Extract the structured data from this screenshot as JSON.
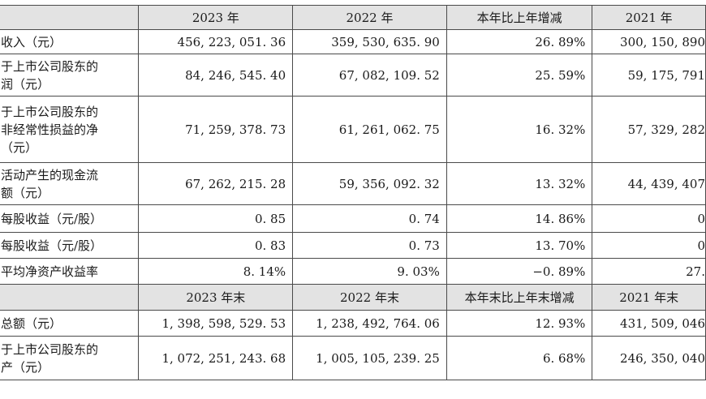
{
  "header1": {
    "col1": "2023 年",
    "col2": "2022 年",
    "col3": "本年比上年增减",
    "col4": "2021 年"
  },
  "rows1": [
    {
      "label": [
        "收入（元）"
      ],
      "v2023": "456, 223, 051. 36",
      "v2022": "359, 530, 635. 90",
      "change": "26. 89%",
      "v2021": "300, 150, 890"
    },
    {
      "label": [
        "于上市公司股东的",
        "润（元）"
      ],
      "v2023": "84, 246, 545. 40",
      "v2022": "67, 082, 109. 52",
      "change": "25. 59%",
      "v2021": "59, 175, 791"
    },
    {
      "label": [
        "于上市公司股东的",
        "非经常性损益的净",
        "（元）"
      ],
      "v2023": "71, 259, 378. 73",
      "v2022": "61, 261, 062. 75",
      "change": "16. 32%",
      "v2021": "57, 329, 282"
    },
    {
      "label": [
        "活动产生的现金流",
        "额（元）"
      ],
      "v2023": "67, 262, 215. 28",
      "v2022": "59, 356, 092. 32",
      "change": "13. 32%",
      "v2021": "44, 439, 407"
    },
    {
      "label": [
        "每股收益（元/股）"
      ],
      "v2023": "0. 85",
      "v2022": "0. 74",
      "change": "14. 86%",
      "v2021": "0"
    },
    {
      "label": [
        "每股收益（元/股）"
      ],
      "v2023": "0. 83",
      "v2022": "0. 73",
      "change": "13. 70%",
      "v2021": "0"
    },
    {
      "label": [
        "平均净资产收益率"
      ],
      "v2023": "8. 14%",
      "v2022": "9. 03%",
      "change": "−0. 89%",
      "v2021": "27."
    }
  ],
  "header2": {
    "col1": "2023 年末",
    "col2": "2022 年末",
    "col3": "本年末比上年末增减",
    "col4": "2021 年末"
  },
  "rows2": [
    {
      "label": [
        "总额（元）"
      ],
      "v2023": "1, 398, 598, 529. 53",
      "v2022": "1, 238, 492, 764. 06",
      "change": "12. 93%",
      "v2021": "431, 509, 046"
    },
    {
      "label": [
        "于上市公司股东的",
        "产（元）"
      ],
      "v2023": "1, 072, 251, 243. 68",
      "v2022": "1, 005, 105, 239. 25",
      "change": "6. 68%",
      "v2021": "246, 350, 040"
    }
  ]
}
